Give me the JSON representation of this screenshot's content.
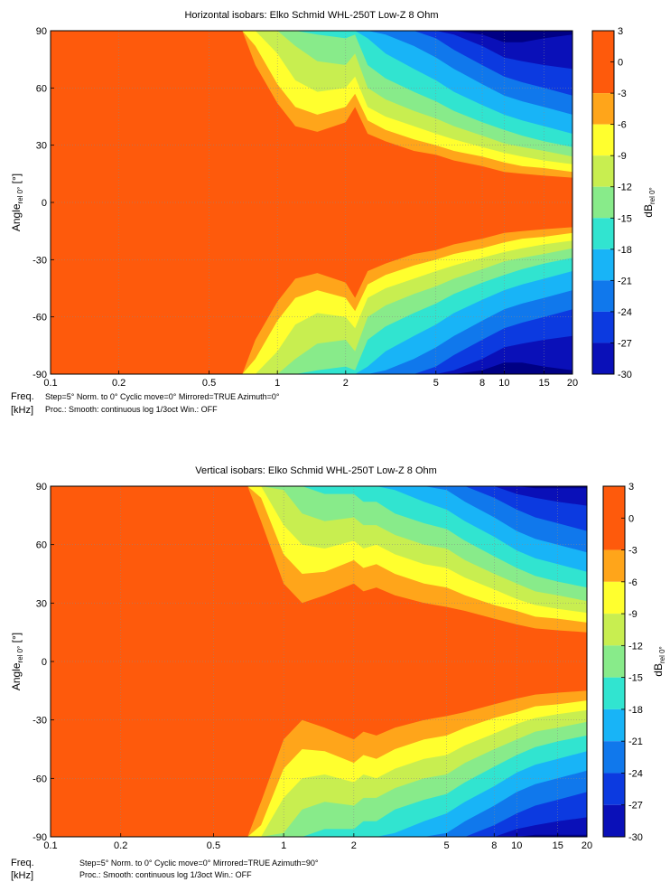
{
  "chart_data": [
    {
      "type": "heatmap",
      "title": "Horizontal isobars: Elko Schmid  WHL-250T  Low-Z 8 Ohm",
      "xlabel_lines": [
        "Freq.",
        "[kHz]"
      ],
      "ylabel": "Angle",
      "ylabel_sub": "rel 0°",
      "ylabel_unit": " [°]",
      "x_scale": "log",
      "xlim": [
        0.1,
        20
      ],
      "ylim": [
        -90,
        90
      ],
      "x_ticks": [
        0.1,
        0.2,
        0.5,
        1,
        2,
        5,
        8,
        10,
        15,
        20
      ],
      "x_tick_labels": [
        "0.1",
        "0.2",
        "0.5",
        "1",
        "2",
        "5",
        "8",
        "10",
        "15",
        "20"
      ],
      "y_ticks": [
        90,
        60,
        30,
        0,
        -30,
        -60,
        -90
      ],
      "y_tick_labels": [
        "90",
        "60",
        "30",
        "0",
        "-30",
        "-60",
        "-90"
      ],
      "grid": true,
      "info_lines": [
        "Step=5°   Norm. to 0°   Cyclic move=0°   Mirrored=TRUE   Azimuth=0°",
        "Proc.: Smooth: continuous log 1/3oct    Win.: OFF"
      ],
      "colorbar": {
        "label": "dB",
        "label_sub": "rel 0°",
        "range": [
          -30,
          3
        ],
        "tick_labels": [
          "3",
          "0",
          "-3",
          "-6",
          "-9",
          "-12",
          "-15",
          "-18",
          "-21",
          "-24",
          "-27",
          "-30"
        ]
      },
      "contour_x_khz": [
        0.1,
        0.7,
        0.8,
        1,
        1.2,
        1.5,
        2,
        2.2,
        2.5,
        3,
        4,
        5,
        6,
        8,
        10,
        12,
        15,
        20
      ],
      "edge_angle_deg": [
        {
          "level_db": -3,
          "angle": [
            90,
            90,
            72,
            52,
            40,
            37,
            42,
            50,
            36,
            32,
            27,
            25,
            22,
            19,
            16,
            15,
            14,
            13
          ]
        },
        {
          "level_db": -6,
          "angle": [
            90,
            90,
            82,
            62,
            50,
            46,
            50,
            57,
            43,
            38,
            33,
            30,
            27,
            24,
            21,
            19,
            18,
            16
          ]
        },
        {
          "level_db": -9,
          "angle": [
            90,
            90,
            90,
            78,
            64,
            58,
            60,
            66,
            50,
            45,
            40,
            36,
            33,
            29,
            26,
            24,
            22,
            20
          ]
        },
        {
          "level_db": -12,
          "angle": [
            90,
            90,
            90,
            90,
            82,
            74,
            72,
            78,
            60,
            54,
            48,
            44,
            40,
            35,
            31,
            29,
            27,
            24
          ]
        },
        {
          "level_db": -15,
          "angle": [
            90,
            90,
            90,
            90,
            90,
            88,
            86,
            88,
            72,
            65,
            58,
            53,
            48,
            42,
            38,
            35,
            32,
            29
          ]
        },
        {
          "level_db": -18,
          "angle": [
            90,
            90,
            90,
            90,
            90,
            90,
            90,
            90,
            86,
            78,
            70,
            64,
            58,
            51,
            46,
            43,
            40,
            36
          ]
        },
        {
          "level_db": -21,
          "angle": [
            90,
            90,
            90,
            90,
            90,
            90,
            90,
            90,
            90,
            88,
            82,
            76,
            70,
            62,
            56,
            53,
            50,
            46
          ]
        },
        {
          "level_db": -24,
          "angle": [
            90,
            90,
            90,
            90,
            90,
            90,
            90,
            90,
            90,
            90,
            90,
            86,
            80,
            72,
            66,
            63,
            60,
            56
          ]
        },
        {
          "level_db": -27,
          "angle": [
            90,
            90,
            90,
            90,
            90,
            90,
            90,
            90,
            90,
            90,
            90,
            90,
            88,
            82,
            76,
            74,
            72,
            70
          ]
        },
        {
          "level_db": -30,
          "angle": [
            90,
            90,
            90,
            90,
            90,
            90,
            90,
            90,
            90,
            90,
            90,
            90,
            90,
            88,
            84,
            84,
            86,
            88
          ]
        }
      ]
    },
    {
      "type": "heatmap",
      "title": "Vertical isobars: Elko Schmid  WHL-250T  Low-Z 8 Ohm",
      "xlabel_lines": [
        "Freq.",
        "[kHz]"
      ],
      "ylabel": "Angle",
      "ylabel_sub": "rel 0°",
      "ylabel_unit": " [°]",
      "x_scale": "log",
      "xlim": [
        0.1,
        20
      ],
      "ylim": [
        -90,
        90
      ],
      "x_ticks": [
        0.1,
        0.2,
        0.5,
        1,
        2,
        5,
        8,
        10,
        15,
        20
      ],
      "x_tick_labels": [
        "0.1",
        "0.2",
        "0.5",
        "1",
        "2",
        "5",
        "8",
        "10",
        "15",
        "20"
      ],
      "y_ticks": [
        90,
        60,
        30,
        0,
        -30,
        -60,
        -90
      ],
      "y_tick_labels": [
        "90",
        "60",
        "30",
        "0",
        "-30",
        "-60",
        "-90"
      ],
      "grid": true,
      "info_lines": [
        "Step=5°   Norm. to 0°   Cyclic move=0°   Mirrored=TRUE   Azimuth=90°",
        "Proc.: Smooth: continuous log 1/3oct    Win.: OFF"
      ],
      "colorbar": {
        "label": "dB",
        "label_sub": "rel 0°",
        "range": [
          -30,
          3
        ],
        "tick_labels": [
          "3",
          "0",
          "-3",
          "-6",
          "-9",
          "-12",
          "-15",
          "-18",
          "-21",
          "-24",
          "-27",
          "-30"
        ]
      },
      "contour_x_khz": [
        0.1,
        0.7,
        0.8,
        1,
        1.2,
        1.5,
        2,
        2.2,
        2.5,
        3,
        4,
        5,
        6,
        8,
        10,
        12,
        15,
        20
      ],
      "edge_angle_deg": [
        {
          "level_db": -3,
          "angle": [
            90,
            90,
            72,
            40,
            30,
            34,
            40,
            36,
            38,
            34,
            30,
            28,
            26,
            22,
            19,
            17,
            16,
            15
          ]
        },
        {
          "level_db": -6,
          "angle": [
            90,
            90,
            84,
            55,
            45,
            46,
            52,
            48,
            50,
            45,
            40,
            38,
            34,
            29,
            26,
            23,
            22,
            20
          ]
        },
        {
          "level_db": -9,
          "angle": [
            90,
            90,
            90,
            70,
            60,
            58,
            62,
            58,
            60,
            55,
            50,
            48,
            43,
            37,
            32,
            29,
            27,
            25
          ]
        },
        {
          "level_db": -12,
          "angle": [
            90,
            90,
            90,
            88,
            76,
            72,
            74,
            70,
            70,
            65,
            60,
            58,
            52,
            45,
            40,
            36,
            34,
            31
          ]
        },
        {
          "level_db": -15,
          "angle": [
            90,
            90,
            90,
            90,
            90,
            86,
            86,
            82,
            82,
            76,
            71,
            68,
            62,
            54,
            48,
            44,
            41,
            38
          ]
        },
        {
          "level_db": -18,
          "angle": [
            90,
            90,
            90,
            90,
            90,
            90,
            90,
            90,
            90,
            88,
            82,
            78,
            72,
            64,
            57,
            53,
            50,
            46
          ]
        },
        {
          "level_db": -21,
          "angle": [
            90,
            90,
            90,
            90,
            90,
            90,
            90,
            90,
            90,
            90,
            90,
            88,
            82,
            74,
            67,
            63,
            60,
            56
          ]
        },
        {
          "level_db": -24,
          "angle": [
            90,
            90,
            90,
            90,
            90,
            90,
            90,
            90,
            90,
            90,
            90,
            90,
            90,
            84,
            78,
            74,
            71,
            67
          ]
        },
        {
          "level_db": -27,
          "angle": [
            90,
            90,
            90,
            90,
            90,
            90,
            90,
            90,
            90,
            90,
            90,
            90,
            90,
            90,
            86,
            84,
            82,
            80
          ]
        },
        {
          "level_db": -30,
          "angle": [
            90,
            90,
            90,
            90,
            90,
            90,
            90,
            90,
            90,
            90,
            90,
            90,
            90,
            90,
            90,
            89,
            89,
            89
          ]
        }
      ]
    }
  ],
  "palette": {
    "above_-3": "#fe5a0c",
    "-3_to_-6": "#ffa51a",
    "-6_to_-9": "#ffff2e",
    "-9_to_-12": "#c8ee50",
    "-12_to_-15": "#88eb8a",
    "-15_to_-18": "#31e4d0",
    "-18_to_-21": "#18b4f7",
    "-21_to_-24": "#1078ec",
    "-24_to_-27": "#0c3ae0",
    "-27_to_-30": "#0a10b8",
    "below_-30": "#000084"
  }
}
